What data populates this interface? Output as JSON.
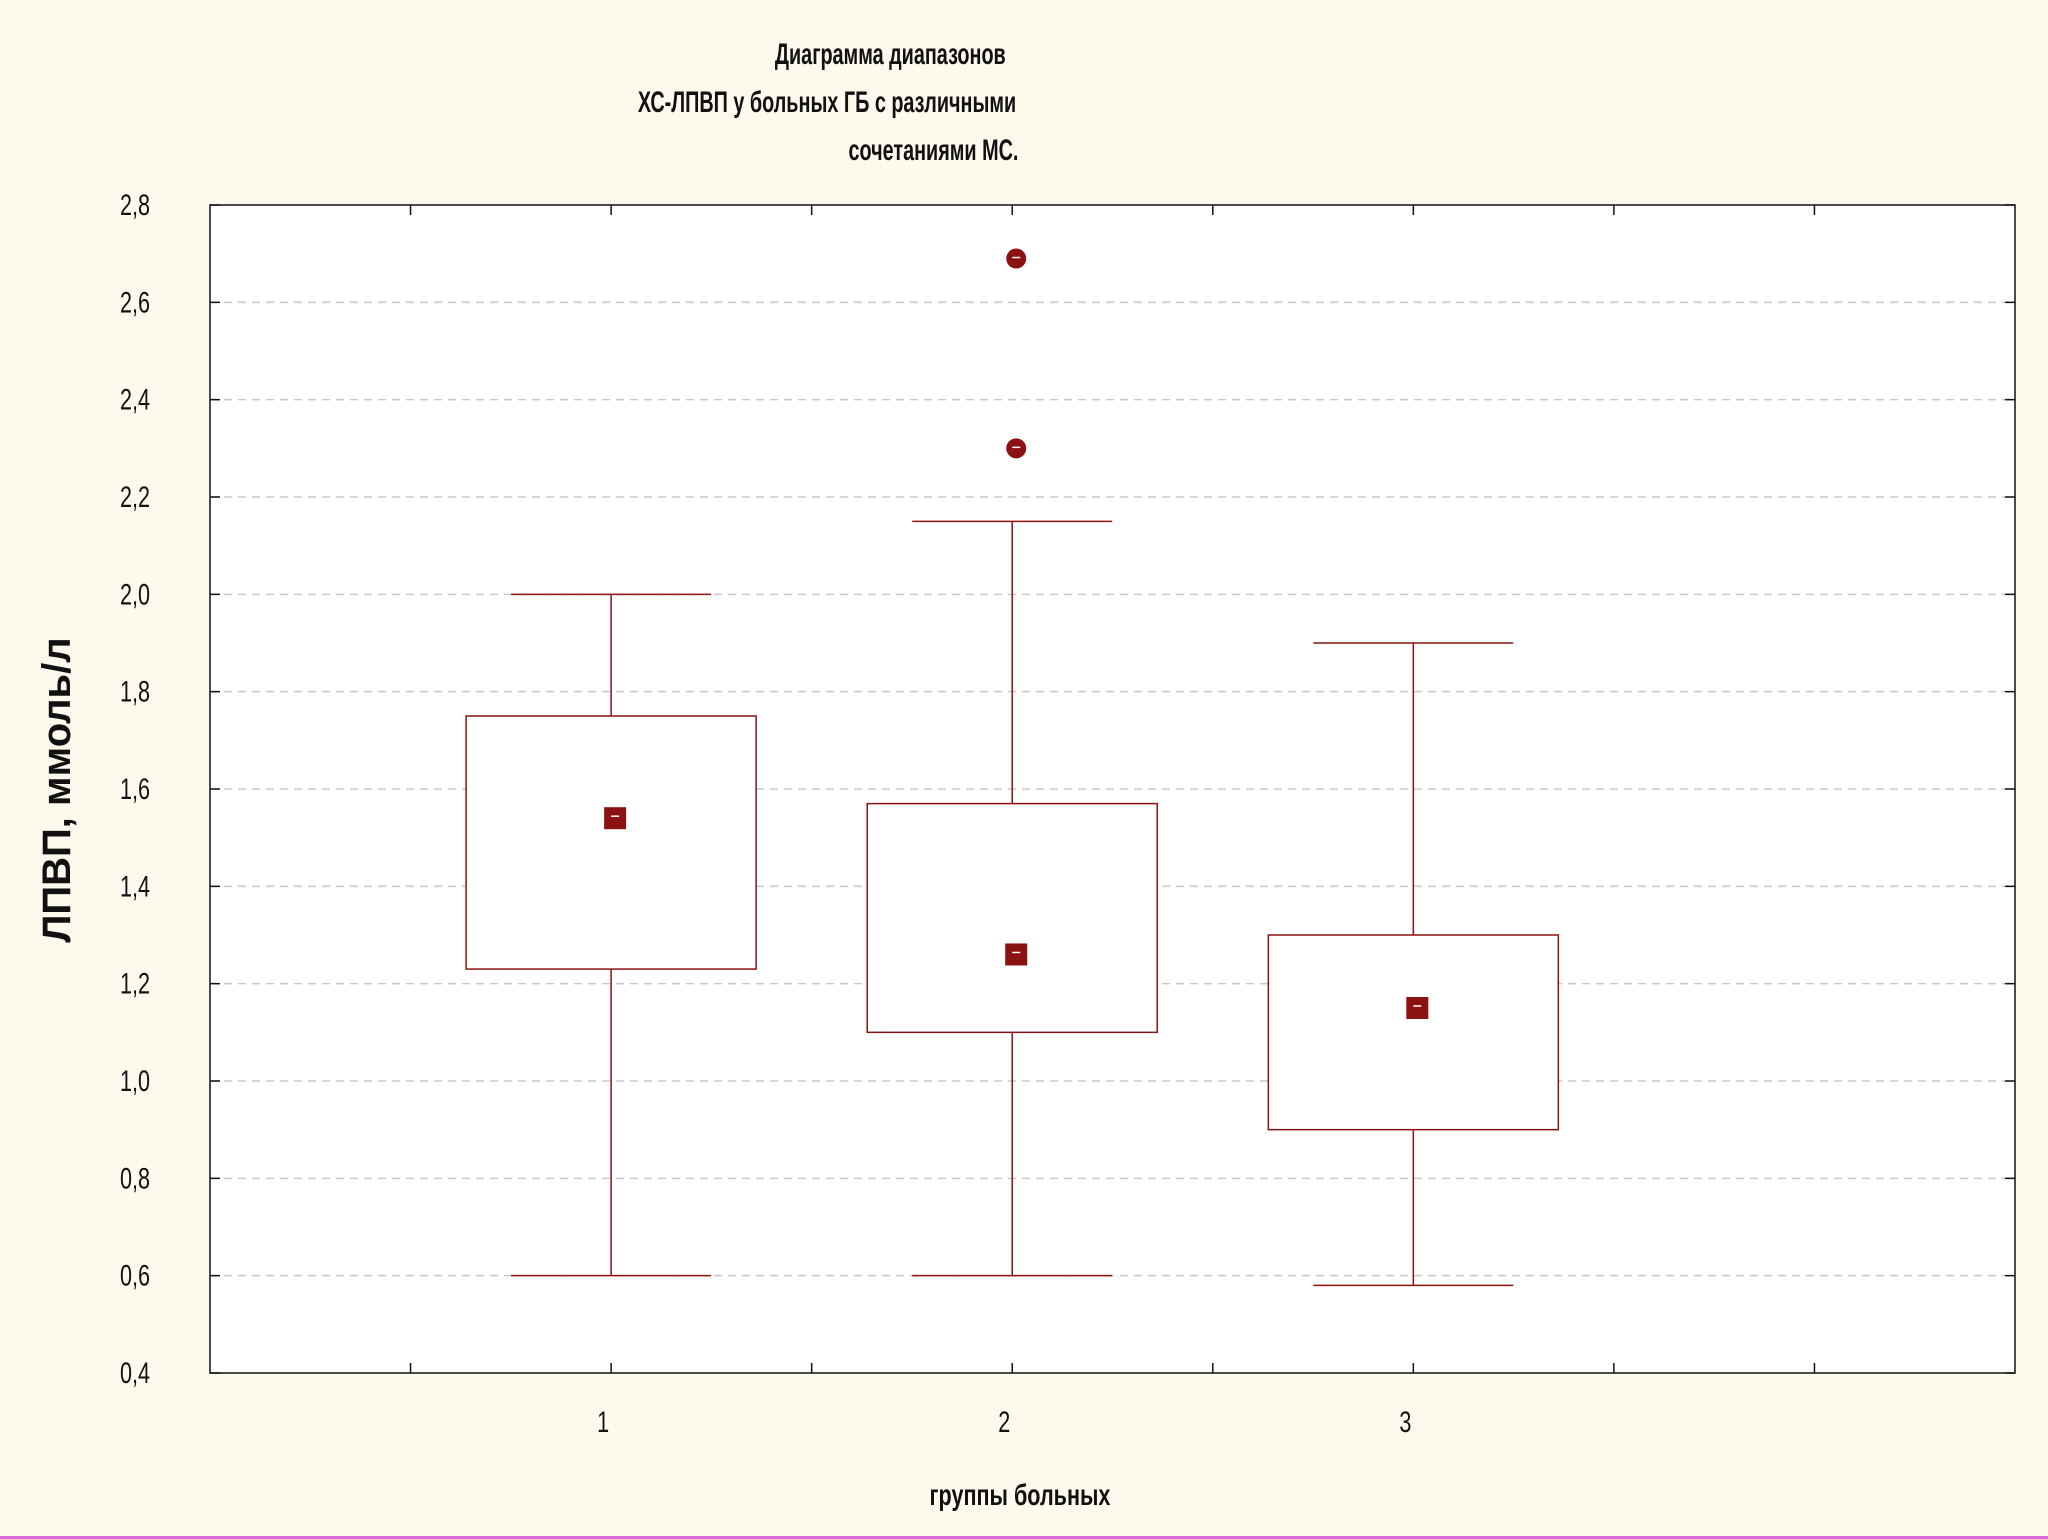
{
  "title_lines": [
    "Диаграмма диапазонов",
    "ХС-ЛПВП у больных ГБ с различными",
    "сочетаниями МС."
  ],
  "colors": {
    "background": "#fdf9ec",
    "plot_background": "#ffffff",
    "series": "#8b1212",
    "grid": "#c8c8c8"
  },
  "chart_data": {
    "type": "box",
    "title": "Диаграмма диапазонов ХС-ЛПВП у больных ГБ с различными сочетаниями МС.",
    "xlabel": "группы больных",
    "ylabel": "ЛПВП, ммоль/л",
    "ylim": [
      0.4,
      2.8
    ],
    "xlim": [
      0,
      4.5
    ],
    "yticks": [
      0.4,
      0.6,
      0.8,
      1.0,
      1.2,
      1.4,
      1.6,
      1.8,
      2.0,
      2.2,
      2.4,
      2.6,
      2.8
    ],
    "ytick_labels": [
      "0,4",
      "0,6",
      "0,8",
      "1,0",
      "1,2",
      "1,4",
      "1,6",
      "1,8",
      "2,0",
      "2,2",
      "2,4",
      "2,6",
      "2,8"
    ],
    "grid": true,
    "categories": [
      "1",
      "2",
      "3"
    ],
    "groups": [
      {
        "x": 1,
        "label": "1",
        "whisker_low": 0.6,
        "box_low": 1.23,
        "center": 1.54,
        "box_high": 1.75,
        "whisker_high": 2.0,
        "outliers": []
      },
      {
        "x": 2,
        "label": "2",
        "whisker_low": 0.6,
        "box_low": 1.1,
        "center": 1.26,
        "box_high": 1.57,
        "whisker_high": 2.15,
        "outliers": [
          2.3,
          2.69
        ]
      },
      {
        "x": 3,
        "label": "3",
        "whisker_low": 0.58,
        "box_low": 0.9,
        "center": 1.15,
        "box_high": 1.3,
        "whisker_high": 1.9,
        "outliers": []
      }
    ]
  }
}
